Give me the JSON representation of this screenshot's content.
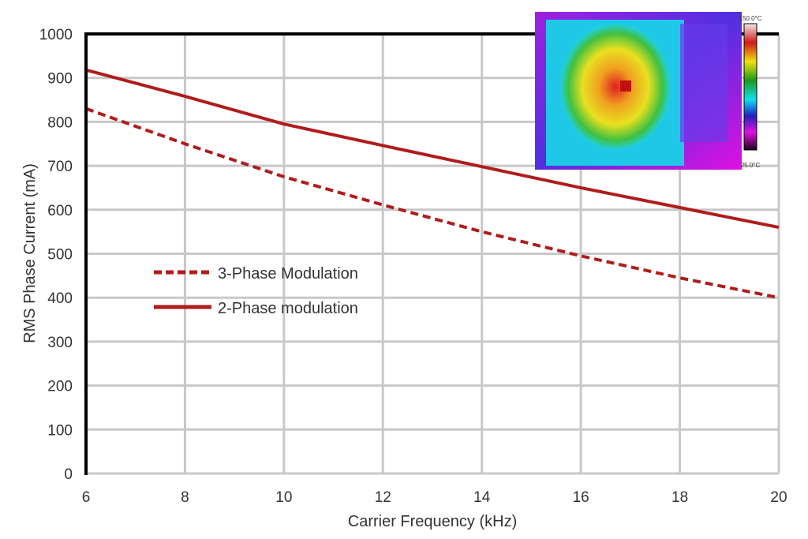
{
  "chart_data": {
    "type": "line",
    "title": "",
    "xlabel": "Carrier Frequency (kHz)",
    "ylabel": "RMS Phase Current (mA)",
    "xlim": [
      6,
      20
    ],
    "ylim": [
      0,
      1000
    ],
    "x_ticks": [
      6,
      8,
      10,
      12,
      14,
      16,
      18,
      20
    ],
    "y_ticks": [
      0,
      100,
      200,
      300,
      400,
      500,
      600,
      700,
      800,
      900,
      1000
    ],
    "grid": true,
    "legend_placement": "center-left",
    "x": [
      6,
      8,
      10,
      12,
      14,
      16,
      18,
      20
    ],
    "series": [
      {
        "name": "3-Phase Modulation",
        "style": "dashed",
        "color": "#b01c1c",
        "values": [
          830,
          750,
          675,
          611,
          550,
          495,
          445,
          400
        ]
      },
      {
        "name": "2-Phase modulation",
        "style": "solid",
        "color": "#b01c1c",
        "values": [
          918,
          858,
          795,
          746,
          698,
          650,
          605,
          560
        ]
      }
    ]
  },
  "inset": {
    "scale_max": "150.0°C",
    "scale_min": "25.0°C"
  }
}
